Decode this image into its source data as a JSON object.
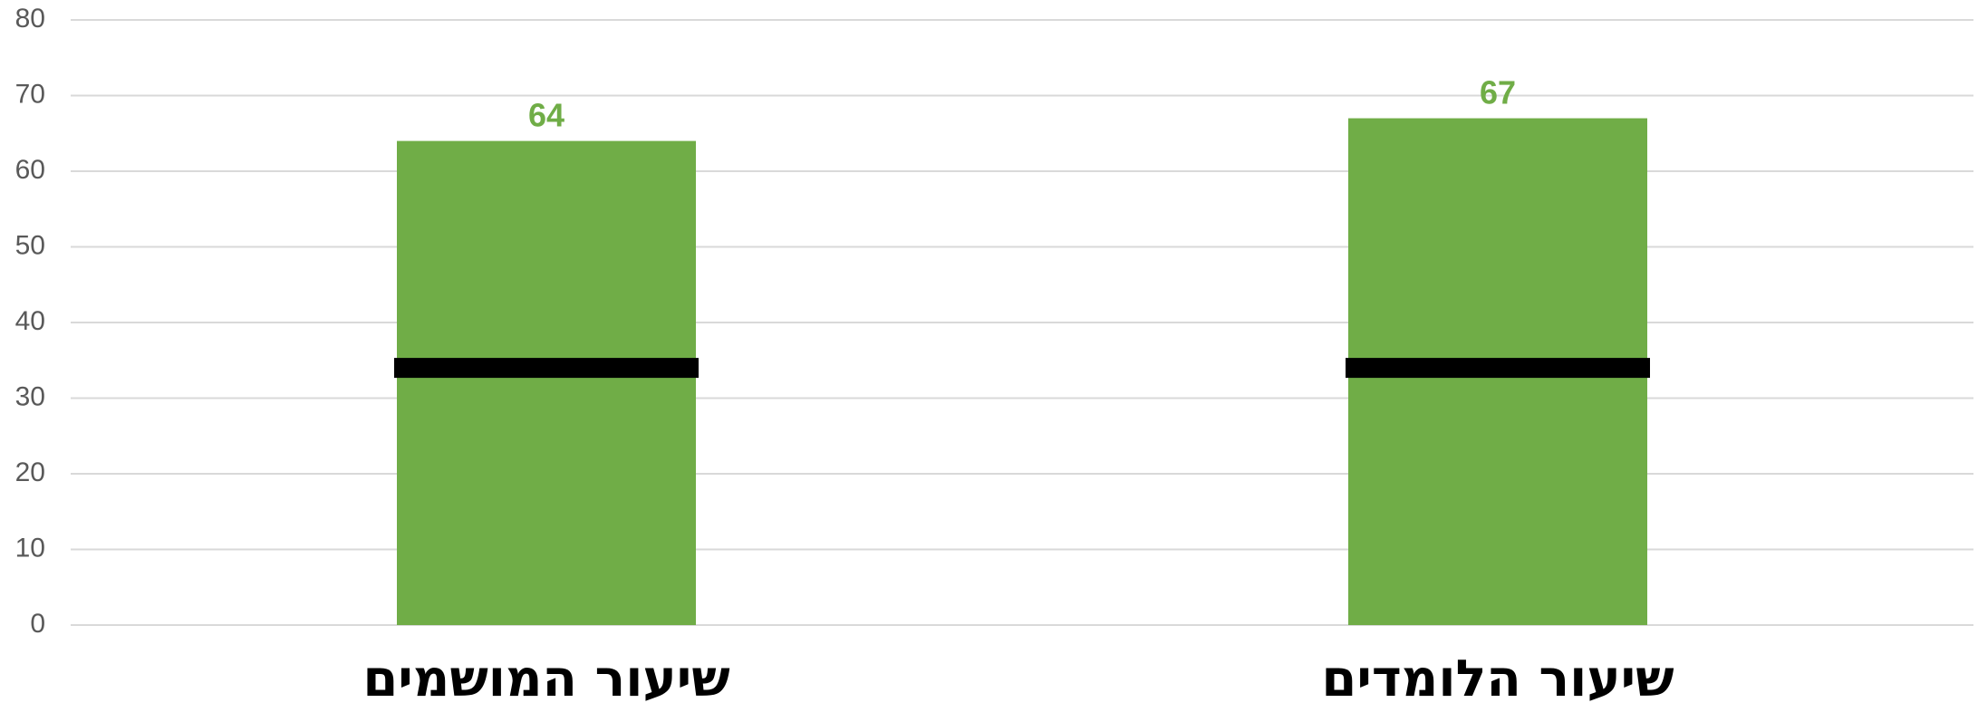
{
  "chart_data": {
    "type": "bar",
    "categories": [
      "שיעור המושמים",
      "שיעור הלומדים"
    ],
    "values": [
      64,
      67
    ],
    "reference_values": [
      34,
      34
    ],
    "data_labels": [
      "64",
      "67"
    ],
    "ylim": [
      0,
      80
    ],
    "yticks": [
      "0",
      "10",
      "20",
      "30",
      "40",
      "50",
      "60",
      "70",
      "80"
    ],
    "grid": true,
    "legend": "none",
    "title": "",
    "xlabel": "",
    "ylabel": ""
  },
  "colors": {
    "bar": "#70ad47",
    "data_label": "#70ad47",
    "reference_line": "#000000",
    "grid": "#d9d9d9",
    "tick_label": "#595959"
  }
}
